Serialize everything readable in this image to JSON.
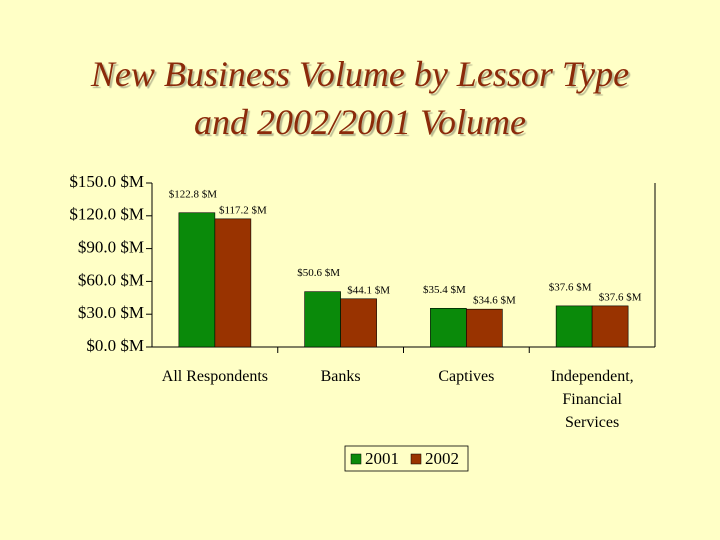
{
  "chart_data": {
    "type": "bar",
    "title": "New Business Volume by Lessor Type and 2002/2001 Volume",
    "categories": [
      "All Respondents",
      "Banks",
      "Captives",
      "Independent,\nFinancial\nServices"
    ],
    "series": [
      {
        "name": "2001",
        "color": "#0a8a0a",
        "values": [
          122.8,
          50.6,
          35.4,
          37.6
        ],
        "value_labels": [
          "$122.8 $M",
          "$50.6 $M",
          "$35.4 $M",
          "$37.6 $M"
        ]
      },
      {
        "name": "2002",
        "color": "#993300",
        "values": [
          117.2,
          44.1,
          34.6,
          37.6
        ],
        "value_labels": [
          "$117.2 $M",
          "$44.1 $M",
          "$34.6 $M",
          "$37.6 $M"
        ]
      }
    ],
    "ylim": [
      0,
      150
    ],
    "yticks": [
      {
        "value": 0,
        "label": "$0.0 $M"
      },
      {
        "value": 30,
        "label": "$30.0 $M"
      },
      {
        "value": 60,
        "label": "$60.0 $M"
      },
      {
        "value": 90,
        "label": "$90.0 $M"
      },
      {
        "value": 120,
        "label": "$120.0 $M"
      },
      {
        "value": 150,
        "label": "$150.0 $M"
      }
    ],
    "legend": "bottom"
  }
}
